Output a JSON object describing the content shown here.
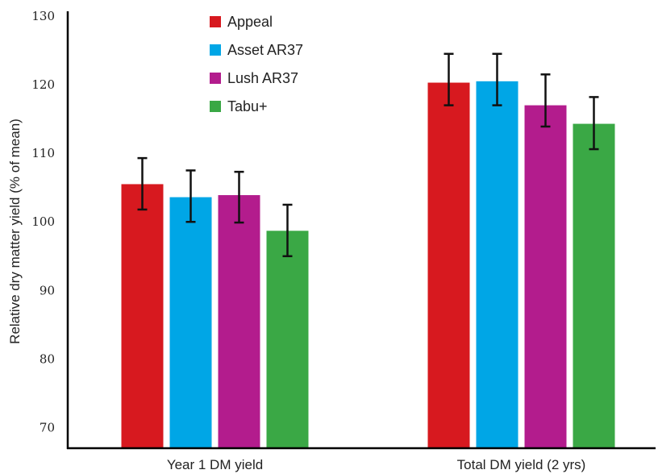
{
  "chart_data": {
    "type": "bar",
    "title": "",
    "xlabel": "",
    "ylabel": "Relative dry matter yield (% of mean)",
    "categories": [
      "Year 1 DM yield",
      "Total DM yield (2 yrs)"
    ],
    "ylim": [
      67,
      130
    ],
    "yticks": [
      70,
      80,
      90,
      100,
      110,
      120,
      130
    ],
    "grid": false,
    "legend_position": "top-left",
    "series": [
      {
        "name": "Appeal",
        "color": "#d7191f",
        "values": [
          105.5,
          120.3
        ],
        "err_low": [
          101.8,
          117.0
        ],
        "err_high": [
          109.3,
          124.5
        ]
      },
      {
        "name": "Asset AR37",
        "color": "#00a6e6",
        "values": [
          103.6,
          120.5
        ],
        "err_low": [
          100.0,
          117.0
        ],
        "err_high": [
          107.5,
          124.5
        ]
      },
      {
        "name": "Lush AR37",
        "color": "#b31c8d",
        "values": [
          103.9,
          117.0
        ],
        "err_low": [
          99.9,
          113.9
        ],
        "err_high": [
          107.3,
          121.5
        ]
      },
      {
        "name": "Tabu+",
        "color": "#3aa845",
        "values": [
          98.7,
          114.3
        ],
        "err_low": [
          95.0,
          110.6
        ],
        "err_high": [
          102.5,
          118.2
        ]
      }
    ]
  }
}
